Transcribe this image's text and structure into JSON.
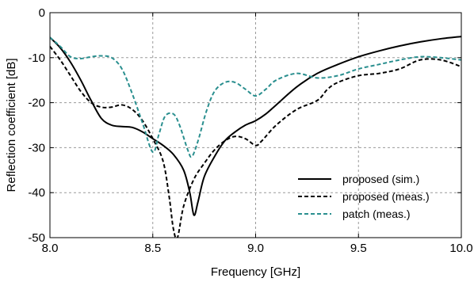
{
  "chart_data": {
    "type": "line",
    "title": "",
    "xlabel": "Frequency [GHz]",
    "ylabel": "Reflection coefficient [dB]",
    "xlim": [
      8.0,
      10.0
    ],
    "ylim": [
      -50,
      0
    ],
    "x_ticks": [
      "8.0",
      "8.5",
      "9.0",
      "9.5",
      "10.0"
    ],
    "y_ticks": [
      "0",
      "-10",
      "-20",
      "-30",
      "-40",
      "-50"
    ],
    "grid": true,
    "legend_position": "bottom-right",
    "series": [
      {
        "name": "proposed (sim.)",
        "color": "#000000",
        "style": "solid",
        "points": [
          [
            8.0,
            -5.5
          ],
          [
            8.05,
            -7.8
          ],
          [
            8.1,
            -11.0
          ],
          [
            8.15,
            -15.0
          ],
          [
            8.2,
            -19.5
          ],
          [
            8.25,
            -23.5
          ],
          [
            8.3,
            -25.0
          ],
          [
            8.35,
            -25.3
          ],
          [
            8.4,
            -25.5
          ],
          [
            8.45,
            -26.5
          ],
          [
            8.5,
            -28.0
          ],
          [
            8.55,
            -29.5
          ],
          [
            8.6,
            -31.5
          ],
          [
            8.65,
            -35.0
          ],
          [
            8.68,
            -40.0
          ],
          [
            8.7,
            -45.0
          ],
          [
            8.72,
            -42.0
          ],
          [
            8.75,
            -36.5
          ],
          [
            8.8,
            -32.0
          ],
          [
            8.85,
            -28.5
          ],
          [
            8.9,
            -26.5
          ],
          [
            8.95,
            -25.0
          ],
          [
            9.0,
            -24.0
          ],
          [
            9.05,
            -22.5
          ],
          [
            9.1,
            -20.5
          ],
          [
            9.2,
            -16.5
          ],
          [
            9.3,
            -13.5
          ],
          [
            9.4,
            -11.5
          ],
          [
            9.5,
            -9.8
          ],
          [
            9.6,
            -8.5
          ],
          [
            9.7,
            -7.4
          ],
          [
            9.8,
            -6.5
          ],
          [
            9.9,
            -5.8
          ],
          [
            10.0,
            -5.3
          ]
        ]
      },
      {
        "name": "proposed (meas.)",
        "color": "#000000",
        "style": "dashed",
        "points": [
          [
            8.0,
            -7.5
          ],
          [
            8.05,
            -10.5
          ],
          [
            8.1,
            -14.0
          ],
          [
            8.15,
            -17.5
          ],
          [
            8.2,
            -20.0
          ],
          [
            8.25,
            -21.0
          ],
          [
            8.3,
            -21.0
          ],
          [
            8.35,
            -20.5
          ],
          [
            8.4,
            -21.5
          ],
          [
            8.45,
            -24.0
          ],
          [
            8.5,
            -28.0
          ],
          [
            8.55,
            -33.0
          ],
          [
            8.58,
            -41.0
          ],
          [
            8.6,
            -48.0
          ],
          [
            8.62,
            -50.0
          ],
          [
            8.65,
            -43.0
          ],
          [
            8.7,
            -37.0
          ],
          [
            8.75,
            -33.5
          ],
          [
            8.8,
            -30.5
          ],
          [
            8.85,
            -28.5
          ],
          [
            8.9,
            -27.5
          ],
          [
            8.95,
            -28.0
          ],
          [
            9.0,
            -29.5
          ],
          [
            9.03,
            -28.5
          ],
          [
            9.1,
            -25.0
          ],
          [
            9.2,
            -21.5
          ],
          [
            9.3,
            -19.5
          ],
          [
            9.35,
            -17.0
          ],
          [
            9.4,
            -15.5
          ],
          [
            9.5,
            -14.0
          ],
          [
            9.6,
            -13.5
          ],
          [
            9.7,
            -12.5
          ],
          [
            9.8,
            -10.5
          ],
          [
            9.9,
            -10.5
          ],
          [
            10.0,
            -12.0
          ]
        ]
      },
      {
        "name": "patch (meas.)",
        "color": "#2a8f8f",
        "style": "dashed",
        "points": [
          [
            8.0,
            -5.5
          ],
          [
            8.05,
            -7.5
          ],
          [
            8.1,
            -9.8
          ],
          [
            8.15,
            -10.2
          ],
          [
            8.2,
            -9.8
          ],
          [
            8.25,
            -9.6
          ],
          [
            8.3,
            -10.0
          ],
          [
            8.35,
            -12.5
          ],
          [
            8.4,
            -18.0
          ],
          [
            8.45,
            -24.5
          ],
          [
            8.5,
            -31.0
          ],
          [
            8.53,
            -27.0
          ],
          [
            8.56,
            -23.0
          ],
          [
            8.6,
            -22.5
          ],
          [
            8.63,
            -25.0
          ],
          [
            8.67,
            -30.5
          ],
          [
            8.69,
            -32.0
          ],
          [
            8.72,
            -28.5
          ],
          [
            8.76,
            -22.0
          ],
          [
            8.8,
            -17.5
          ],
          [
            8.85,
            -15.5
          ],
          [
            8.9,
            -15.5
          ],
          [
            8.95,
            -17.0
          ],
          [
            9.0,
            -18.5
          ],
          [
            9.05,
            -17.0
          ],
          [
            9.1,
            -15.0
          ],
          [
            9.2,
            -13.5
          ],
          [
            9.3,
            -14.5
          ],
          [
            9.4,
            -14.0
          ],
          [
            9.5,
            -12.5
          ],
          [
            9.6,
            -11.5
          ],
          [
            9.7,
            -10.5
          ],
          [
            9.8,
            -9.8
          ],
          [
            9.9,
            -10.0
          ],
          [
            10.0,
            -10.5
          ]
        ]
      }
    ]
  }
}
